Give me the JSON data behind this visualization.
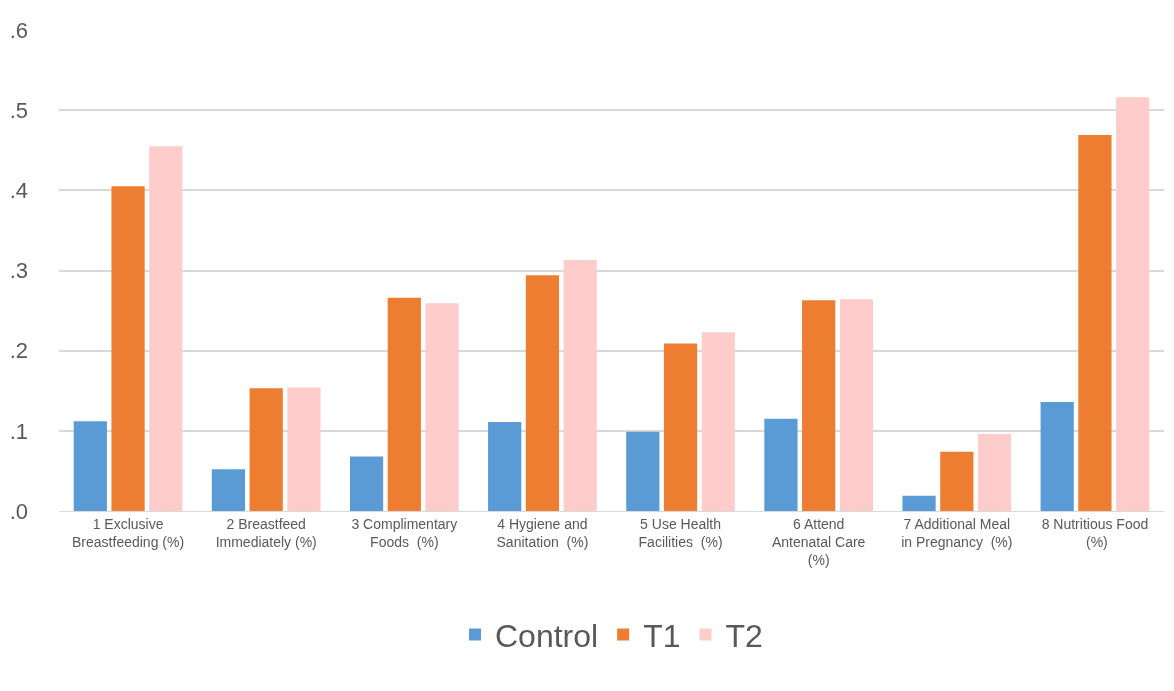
{
  "chart_data": {
    "type": "bar",
    "categories": [
      "1 Exclusive Breastfeeding (%)",
      "2 Breastfeed Immediately (%)",
      "3 Complimentary Foods  (%)",
      "4 Hygiene and Sanitation  (%)",
      "5 Use Health Facilities  (%)",
      "6 Attend Antenatal Care (%)",
      "7 Additional Meal in Pregnancy  (%)",
      "8 Nutritious Food  (%)"
    ],
    "series": [
      {
        "name": "Control",
        "color": "#5b9bd5",
        "values": [
          0.112,
          0.052,
          0.068,
          0.111,
          0.099,
          0.115,
          0.019,
          0.136
        ]
      },
      {
        "name": "T1",
        "color": "#ed7d31",
        "values": [
          0.405,
          0.153,
          0.266,
          0.294,
          0.209,
          0.263,
          0.074,
          0.469
        ]
      },
      {
        "name": "T2",
        "color": "#ffcccc",
        "values": [
          0.455,
          0.154,
          0.259,
          0.313,
          0.223,
          0.264,
          0.096,
          0.516
        ]
      }
    ],
    "ylim": [
      0,
      0.6
    ],
    "yticks": [
      {
        "value": 0,
        "label": ".0"
      },
      {
        "value": 0.1,
        "label": ".1"
      },
      {
        "value": 0.2,
        "label": ".2"
      },
      {
        "value": 0.3,
        "label": ".3"
      },
      {
        "value": 0.4,
        "label": ".4"
      },
      {
        "value": 0.5,
        "label": ".5"
      },
      {
        "value": 0.6,
        "label": ".6"
      }
    ],
    "grid": "y",
    "legend": "bottom"
  }
}
